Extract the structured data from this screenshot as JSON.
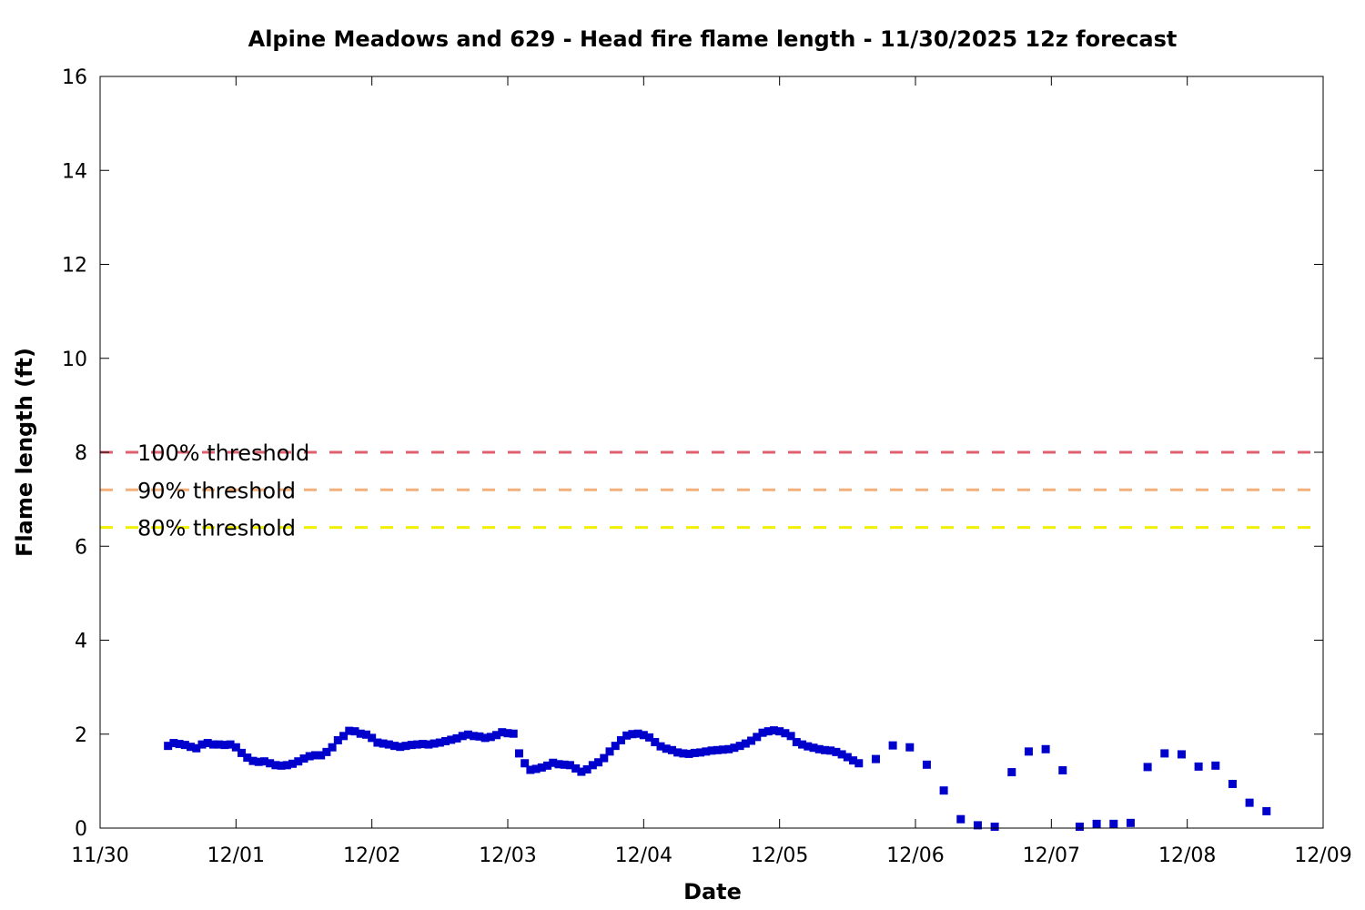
{
  "chart_data": {
    "type": "scatter",
    "title": "Alpine Meadows and 629 - Head fire flame length - 11/30/2025 12z forecast",
    "xlabel": "Date",
    "ylabel": "Flame length (ft)",
    "xlim": [
      "2025-11-30T00:00",
      "2025-12-09T00:00"
    ],
    "ylim": [
      0,
      16
    ],
    "x_tick_labels": [
      "11/30",
      "12/01",
      "12/02",
      "12/03",
      "12/04",
      "12/05",
      "12/06",
      "12/07",
      "12/08",
      "12/09"
    ],
    "y_ticks": [
      0,
      2,
      4,
      6,
      8,
      10,
      12,
      14,
      16
    ],
    "grid": false,
    "marker_color": "#0000cc",
    "thresholds": [
      {
        "label": "100% threshold",
        "value": 8.0,
        "color": "#e06070"
      },
      {
        "label": "90% threshold",
        "value": 7.2,
        "color": "#f4b07a"
      },
      {
        "label": "80% threshold",
        "value": 6.4,
        "color": "#f0f000"
      }
    ],
    "series": [
      {
        "points": [
          [
            "2025-11-30T12:00",
            1.75
          ],
          [
            "2025-11-30T13:00",
            1.81
          ],
          [
            "2025-11-30T14:00",
            1.79
          ],
          [
            "2025-11-30T15:00",
            1.77
          ],
          [
            "2025-11-30T16:00",
            1.73
          ],
          [
            "2025-11-30T17:00",
            1.7
          ],
          [
            "2025-11-30T18:00",
            1.78
          ],
          [
            "2025-11-30T19:00",
            1.81
          ],
          [
            "2025-11-30T20:00",
            1.78
          ],
          [
            "2025-11-30T21:00",
            1.78
          ],
          [
            "2025-11-30T22:00",
            1.77
          ],
          [
            "2025-11-30T23:00",
            1.78
          ],
          [
            "2025-12-01T00:00",
            1.72
          ],
          [
            "2025-12-01T01:00",
            1.6
          ],
          [
            "2025-12-01T02:00",
            1.5
          ],
          [
            "2025-12-01T03:00",
            1.43
          ],
          [
            "2025-12-01T04:00",
            1.41
          ],
          [
            "2025-12-01T05:00",
            1.42
          ],
          [
            "2025-12-01T06:00",
            1.38
          ],
          [
            "2025-12-01T07:00",
            1.34
          ],
          [
            "2025-12-01T08:00",
            1.33
          ],
          [
            "2025-12-01T09:00",
            1.34
          ],
          [
            "2025-12-01T10:00",
            1.37
          ],
          [
            "2025-12-01T11:00",
            1.42
          ],
          [
            "2025-12-01T12:00",
            1.48
          ],
          [
            "2025-12-01T13:00",
            1.53
          ],
          [
            "2025-12-01T14:00",
            1.55
          ],
          [
            "2025-12-01T15:00",
            1.55
          ],
          [
            "2025-12-01T16:00",
            1.62
          ],
          [
            "2025-12-01T17:00",
            1.72
          ],
          [
            "2025-12-01T18:00",
            1.87
          ],
          [
            "2025-12-01T19:00",
            1.96
          ],
          [
            "2025-12-01T20:00",
            2.07
          ],
          [
            "2025-12-01T21:00",
            2.06
          ],
          [
            "2025-12-01T22:00",
            2.01
          ],
          [
            "2025-12-01T23:00",
            1.99
          ],
          [
            "2025-12-02T00:00",
            1.92
          ],
          [
            "2025-12-02T01:00",
            1.82
          ],
          [
            "2025-12-02T02:00",
            1.8
          ],
          [
            "2025-12-02T03:00",
            1.78
          ],
          [
            "2025-12-02T04:00",
            1.75
          ],
          [
            "2025-12-02T05:00",
            1.73
          ],
          [
            "2025-12-02T06:00",
            1.75
          ],
          [
            "2025-12-02T07:00",
            1.77
          ],
          [
            "2025-12-02T08:00",
            1.78
          ],
          [
            "2025-12-02T09:00",
            1.79
          ],
          [
            "2025-12-02T10:00",
            1.78
          ],
          [
            "2025-12-02T11:00",
            1.8
          ],
          [
            "2025-12-02T12:00",
            1.82
          ],
          [
            "2025-12-02T13:00",
            1.85
          ],
          [
            "2025-12-02T14:00",
            1.88
          ],
          [
            "2025-12-02T15:00",
            1.91
          ],
          [
            "2025-12-02T16:00",
            1.96
          ],
          [
            "2025-12-02T17:00",
            1.99
          ],
          [
            "2025-12-02T18:00",
            1.96
          ],
          [
            "2025-12-02T19:00",
            1.95
          ],
          [
            "2025-12-02T20:00",
            1.92
          ],
          [
            "2025-12-02T21:00",
            1.94
          ],
          [
            "2025-12-02T22:00",
            1.98
          ],
          [
            "2025-12-02T23:00",
            2.04
          ],
          [
            "2025-12-03T00:00",
            2.02
          ],
          [
            "2025-12-03T01:00",
            2.01
          ],
          [
            "2025-12-03T02:00",
            1.59
          ],
          [
            "2025-12-03T03:00",
            1.38
          ],
          [
            "2025-12-03T04:00",
            1.24
          ],
          [
            "2025-12-03T05:00",
            1.26
          ],
          [
            "2025-12-03T06:00",
            1.29
          ],
          [
            "2025-12-03T07:00",
            1.33
          ],
          [
            "2025-12-03T08:00",
            1.39
          ],
          [
            "2025-12-03T09:00",
            1.36
          ],
          [
            "2025-12-03T10:00",
            1.35
          ],
          [
            "2025-12-03T11:00",
            1.34
          ],
          [
            "2025-12-03T12:00",
            1.27
          ],
          [
            "2025-12-03T13:00",
            1.2
          ],
          [
            "2025-12-03T14:00",
            1.25
          ],
          [
            "2025-12-03T15:00",
            1.34
          ],
          [
            "2025-12-03T16:00",
            1.4
          ],
          [
            "2025-12-03T17:00",
            1.49
          ],
          [
            "2025-12-03T18:00",
            1.63
          ],
          [
            "2025-12-03T19:00",
            1.75
          ],
          [
            "2025-12-03T20:00",
            1.87
          ],
          [
            "2025-12-03T21:00",
            1.97
          ],
          [
            "2025-12-03T22:00",
            2.0
          ],
          [
            "2025-12-03T23:00",
            2.01
          ],
          [
            "2025-12-04T00:00",
            1.98
          ],
          [
            "2025-12-04T01:00",
            1.93
          ],
          [
            "2025-12-04T02:00",
            1.83
          ],
          [
            "2025-12-04T03:00",
            1.74
          ],
          [
            "2025-12-04T04:00",
            1.69
          ],
          [
            "2025-12-04T05:00",
            1.66
          ],
          [
            "2025-12-04T06:00",
            1.61
          ],
          [
            "2025-12-04T07:00",
            1.59
          ],
          [
            "2025-12-04T08:00",
            1.58
          ],
          [
            "2025-12-04T09:00",
            1.6
          ],
          [
            "2025-12-04T10:00",
            1.61
          ],
          [
            "2025-12-04T11:00",
            1.63
          ],
          [
            "2025-12-04T12:00",
            1.65
          ],
          [
            "2025-12-04T13:00",
            1.66
          ],
          [
            "2025-12-04T14:00",
            1.67
          ],
          [
            "2025-12-04T15:00",
            1.68
          ],
          [
            "2025-12-04T16:00",
            1.71
          ],
          [
            "2025-12-04T17:00",
            1.75
          ],
          [
            "2025-12-04T18:00",
            1.8
          ],
          [
            "2025-12-04T19:00",
            1.86
          ],
          [
            "2025-12-04T20:00",
            1.94
          ],
          [
            "2025-12-04T21:00",
            2.03
          ],
          [
            "2025-12-04T22:00",
            2.06
          ],
          [
            "2025-12-04T23:00",
            2.08
          ],
          [
            "2025-12-05T00:00",
            2.06
          ],
          [
            "2025-12-05T01:00",
            2.02
          ],
          [
            "2025-12-05T02:00",
            1.96
          ],
          [
            "2025-12-05T03:00",
            1.83
          ],
          [
            "2025-12-05T04:00",
            1.78
          ],
          [
            "2025-12-05T05:00",
            1.74
          ],
          [
            "2025-12-05T06:00",
            1.71
          ],
          [
            "2025-12-05T07:00",
            1.68
          ],
          [
            "2025-12-05T08:00",
            1.66
          ],
          [
            "2025-12-05T09:00",
            1.65
          ],
          [
            "2025-12-05T10:00",
            1.62
          ],
          [
            "2025-12-05T11:00",
            1.57
          ],
          [
            "2025-12-05T12:00",
            1.51
          ],
          [
            "2025-12-05T13:00",
            1.44
          ],
          [
            "2025-12-05T14:00",
            1.38
          ],
          [
            "2025-12-05T17:00",
            1.47
          ],
          [
            "2025-12-05T20:00",
            1.76
          ],
          [
            "2025-12-05T23:00",
            1.72
          ],
          [
            "2025-12-06T02:00",
            1.35
          ],
          [
            "2025-12-06T05:00",
            0.8
          ],
          [
            "2025-12-06T08:00",
            0.19
          ],
          [
            "2025-12-06T11:00",
            0.06
          ],
          [
            "2025-12-06T14:00",
            0.03
          ],
          [
            "2025-12-06T17:00",
            1.19
          ],
          [
            "2025-12-06T20:00",
            1.63
          ],
          [
            "2025-12-06T23:00",
            1.68
          ],
          [
            "2025-12-07T02:00",
            1.23
          ],
          [
            "2025-12-07T05:00",
            0.03
          ],
          [
            "2025-12-07T08:00",
            0.09
          ],
          [
            "2025-12-07T11:00",
            0.09
          ],
          [
            "2025-12-07T14:00",
            0.11
          ],
          [
            "2025-12-07T17:00",
            1.3
          ],
          [
            "2025-12-07T20:00",
            1.59
          ],
          [
            "2025-12-07T23:00",
            1.57
          ],
          [
            "2025-12-08T02:00",
            1.31
          ],
          [
            "2025-12-08T05:00",
            1.33
          ],
          [
            "2025-12-08T08:00",
            0.94
          ],
          [
            "2025-12-08T11:00",
            0.54
          ],
          [
            "2025-12-08T14:00",
            0.36
          ]
        ]
      }
    ]
  }
}
